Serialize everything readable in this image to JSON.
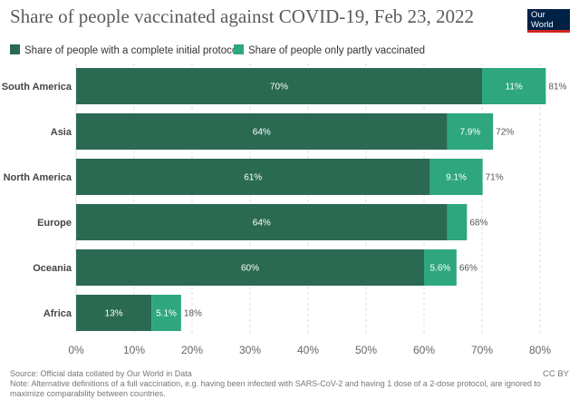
{
  "header": {
    "logo_line1": "Our World",
    "logo_line2": "in Data"
  },
  "chart_data": {
    "type": "bar",
    "orientation": "horizontal",
    "stacked": true,
    "title": "Share of people vaccinated against COVID-19, Feb 23, 2022",
    "categories": [
      "South America",
      "Asia",
      "North America",
      "Europe",
      "Oceania",
      "Africa"
    ],
    "series": [
      {
        "name": "Share of people with a complete initial protocol",
        "color": "#2a6a52",
        "values": [
          70,
          64,
          61,
          64,
          60,
          13
        ],
        "labels": [
          "70%",
          "64%",
          "61%",
          "64%",
          "60%",
          "13%"
        ]
      },
      {
        "name": "Share of people only partly vaccinated",
        "color": "#2ea77e",
        "values": [
          11,
          7.9,
          9.1,
          3.4,
          5.6,
          5.1
        ],
        "labels": [
          "11%",
          "7.9%",
          "9.1%",
          "",
          "5.6%",
          "5.1%"
        ]
      }
    ],
    "totals": [
      "81%",
      "72%",
      "71%",
      "68%",
      "66%",
      "18%"
    ],
    "xlim": [
      0,
      82
    ],
    "xticks": [
      0,
      10,
      20,
      30,
      40,
      50,
      60,
      70,
      80
    ],
    "xtick_labels": [
      "0%",
      "10%",
      "20%",
      "30%",
      "40%",
      "50%",
      "60%",
      "70%",
      "80%"
    ],
    "grid": "vertical-dashed",
    "legend_position": "top-left"
  },
  "footer": {
    "source": "Source: Official data collated by Our World in Data",
    "note": "Note: Alternative definitions of a full vaccination, e.g. having been infected with SARS-CoV-2 and having 1 dose of a 2-dose protocol, are ignored to maximize comparability between countries.",
    "license": "CC BY"
  }
}
